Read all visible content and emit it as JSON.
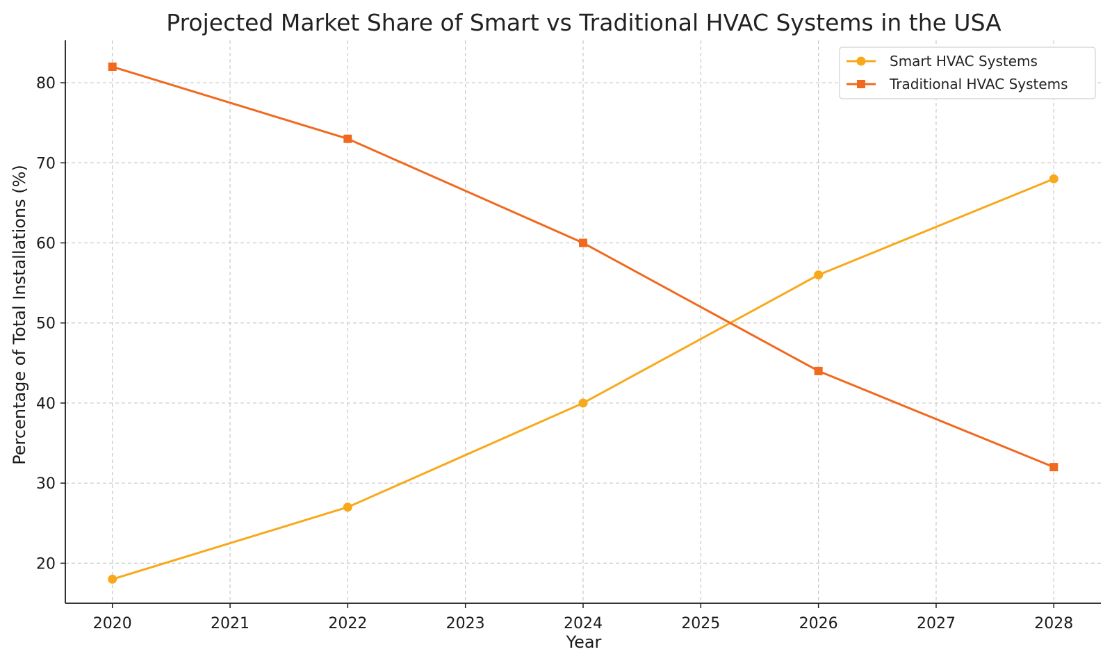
{
  "chart_data": {
    "type": "line",
    "title": "Projected Market Share of Smart vs Traditional HVAC Systems in the USA",
    "xlabel": "Year",
    "ylabel": "Percentage of Total Installations (%)",
    "x_ticks": [
      "2020",
      "2021",
      "2022",
      "2023",
      "2024",
      "2025",
      "2026",
      "2027",
      "2028"
    ],
    "y_ticks": [
      20,
      30,
      40,
      50,
      60,
      70,
      80
    ],
    "xlim": [
      2019.6,
      2028.4
    ],
    "ylim": [
      15,
      85.3
    ],
    "grid": true,
    "legend_position": "top-right",
    "series": [
      {
        "name": "Smart HVAC Systems",
        "color": "#f8a91b",
        "marker": "circle",
        "x": [
          2020,
          2022,
          2024,
          2026,
          2028
        ],
        "values": [
          18,
          27,
          40,
          56,
          68
        ]
      },
      {
        "name": "Traditional HVAC Systems",
        "color": "#f0691e",
        "marker": "square",
        "x": [
          2020,
          2022,
          2024,
          2026,
          2028
        ],
        "values": [
          82,
          73,
          60,
          44,
          32
        ]
      }
    ]
  }
}
